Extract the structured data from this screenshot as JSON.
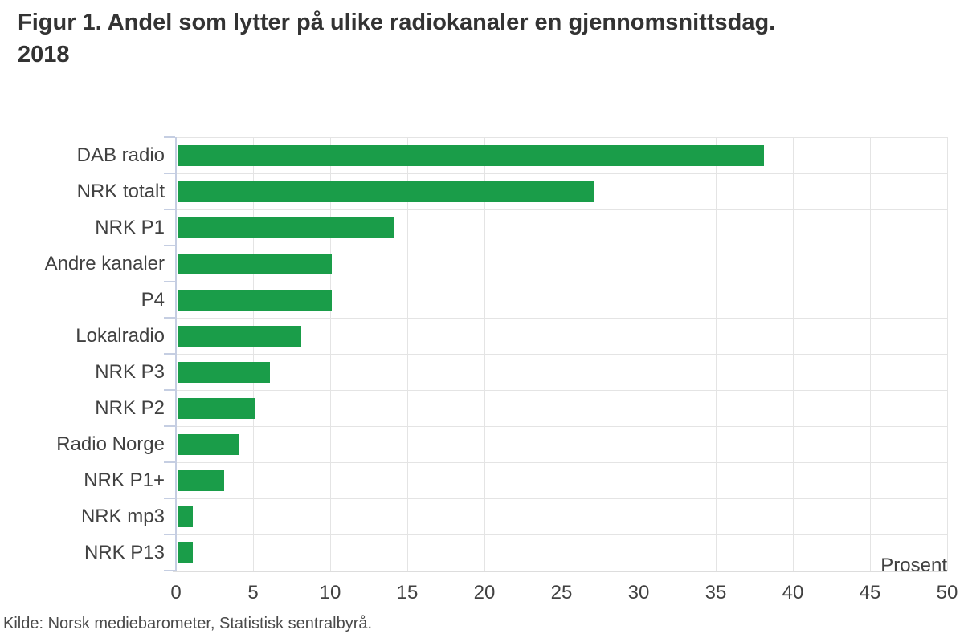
{
  "page": {
    "title_lines": [
      "Figur 1. Andel som lytter på ulike radiokanaler en gjennomsnittsdag.",
      "2018"
    ],
    "source": "Kilde: Norsk mediebarometer, Statistisk sentralbyrå."
  },
  "chart_data": {
    "type": "bar",
    "orientation": "horizontal",
    "title": "Figur 1. Andel som lytter på ulike radiokanaler en gjennomsnittsdag. 2018",
    "categories": [
      "DAB radio",
      "NRK totalt",
      "NRK P1",
      "Andre kanaler",
      "P4",
      "Lokalradio",
      "NRK P3",
      "NRK P2",
      "Radio Norge",
      "NRK P1+",
      "NRK mp3",
      "NRK P13"
    ],
    "values": [
      38,
      27,
      14,
      10,
      10,
      8,
      6,
      5,
      4,
      3,
      1,
      1
    ],
    "xlabel": "Prosent",
    "ylabel": "",
    "xlim": [
      0,
      50
    ],
    "xticks": [
      0,
      5,
      10,
      15,
      20,
      25,
      30,
      35,
      40,
      45,
      50
    ],
    "grid": true,
    "legend": false,
    "source": "Kilde: Norsk mediebarometer, Statistisk sentralbyrå."
  },
  "palette": {
    "bar_green": "#1a9d49",
    "gridline_gray": "#e4e4e4",
    "axis_blue": "#c5cee2",
    "text_dark": "#414141",
    "title_dark": "#333333"
  }
}
